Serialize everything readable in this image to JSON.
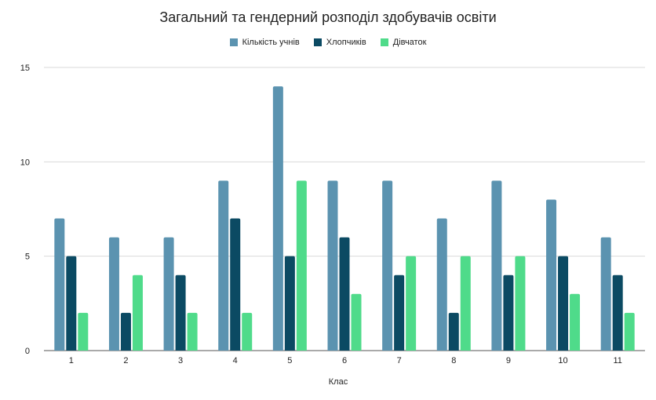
{
  "chart_data": {
    "type": "bar",
    "title": "Загальний та гендерний розподіл здобувачів освіти",
    "xlabel": "Клас",
    "ylabel": "",
    "categories": [
      "1",
      "2",
      "3",
      "4",
      "5",
      "6",
      "7",
      "8",
      "9",
      "10",
      "11"
    ],
    "series": [
      {
        "name": "Кількість учнів",
        "color": "#5b93b0",
        "values": [
          7,
          6,
          6,
          9,
          14,
          9,
          9,
          7,
          9,
          8,
          6
        ]
      },
      {
        "name": "Хлопчиків",
        "color": "#0b4a63",
        "values": [
          5,
          2,
          4,
          7,
          5,
          6,
          4,
          2,
          4,
          5,
          4
        ]
      },
      {
        "name": "Дівчаток",
        "color": "#4fdb8a",
        "values": [
          2,
          4,
          2,
          2,
          9,
          3,
          5,
          5,
          5,
          3,
          2
        ]
      }
    ],
    "ylim": [
      0,
      15
    ],
    "yticks": [
      0,
      5,
      10,
      15
    ],
    "grid": true,
    "legend_position": "top"
  }
}
